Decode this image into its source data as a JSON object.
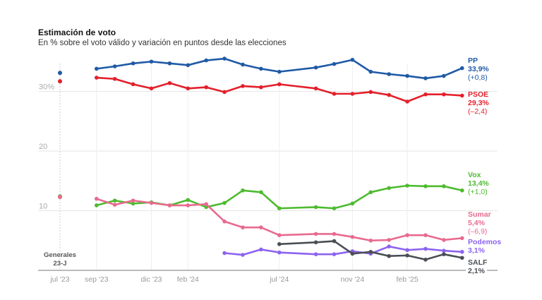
{
  "chart_data": {
    "type": "line",
    "title": "Estimación de voto",
    "subtitle": "En % sobre el voto válido y variación en puntos desde las elecciones",
    "x_ticks": [
      "jul '23",
      "sep '23",
      "dic '23",
      "feb '24",
      "jul '24",
      "nov '24",
      "feb '25"
    ],
    "y_ticks": [
      "30%",
      "20",
      "10"
    ],
    "ylim": [
      0,
      36
    ],
    "grid": true,
    "election_label": [
      "Generales",
      "23-J"
    ],
    "x": [
      "2023-09",
      "2023-10",
      "2023-11",
      "2023-12",
      "2024-01",
      "2024-02",
      "2024-03",
      "2024-04",
      "2024-05",
      "2024-06",
      "2024-07",
      "2024-09",
      "2024-10",
      "2024-11",
      "2024-12",
      "2025-01",
      "2025-02",
      "2025-03",
      "2025-04",
      "2025-05"
    ],
    "series": [
      {
        "name": "PP",
        "color": "#1f5aa6",
        "election": 33.1,
        "latest": "33,9%",
        "change": "(+0,8)",
        "values": [
          33.8,
          34.2,
          34.7,
          35.0,
          34.7,
          34.4,
          35.2,
          35.5,
          34.5,
          33.8,
          33.3,
          34.0,
          34.6,
          35.3,
          33.3,
          32.9,
          32.6,
          32.2,
          32.6,
          33.9
        ]
      },
      {
        "name": "PSOE",
        "color": "#e3202b",
        "election": 31.7,
        "latest": "29,3%",
        "change": "(–2,4)",
        "values": [
          32.3,
          32.1,
          31.2,
          30.5,
          31.4,
          30.5,
          30.7,
          29.9,
          30.9,
          30.7,
          31.2,
          30.5,
          29.6,
          29.6,
          29.9,
          29.4,
          28.3,
          29.5,
          29.5,
          29.3
        ]
      },
      {
        "name": "Vox",
        "color": "#4dbb2f",
        "election": 12.4,
        "latest": "13,4%",
        "change": "(+1,0)",
        "values": [
          10.9,
          11.7,
          11.2,
          11.4,
          10.9,
          11.8,
          10.6,
          11.3,
          13.4,
          13.1,
          10.4,
          10.6,
          10.4,
          11.2,
          13.1,
          13.8,
          14.2,
          14.1,
          14.1,
          13.4
        ]
      },
      {
        "name": "Sumar",
        "color": "#e86a8f",
        "election": 12.3,
        "latest": "5,4%",
        "change": "(–6,9)",
        "values": [
          12.0,
          11.0,
          11.7,
          11.3,
          10.9,
          10.9,
          11.1,
          8.2,
          7.2,
          7.2,
          5.9,
          6.1,
          6.1,
          5.6,
          5.0,
          5.1,
          5.9,
          5.9,
          5.1,
          5.4
        ]
      },
      {
        "name": "Podemos",
        "color": "#8d63f0",
        "latest": "3,1%",
        "values": [
          null,
          null,
          null,
          null,
          null,
          null,
          null,
          2.9,
          2.6,
          3.5,
          3.0,
          2.7,
          2.7,
          3.2,
          2.8,
          4.0,
          3.4,
          3.6,
          3.3,
          3.1
        ]
      },
      {
        "name": "SALF",
        "color": "#4a4f55",
        "latest": "2,1%",
        "values": [
          null,
          null,
          null,
          null,
          null,
          null,
          null,
          null,
          null,
          null,
          4.4,
          4.7,
          4.9,
          2.8,
          3.1,
          2.4,
          2.5,
          1.8,
          2.7,
          2.1
        ]
      }
    ]
  }
}
